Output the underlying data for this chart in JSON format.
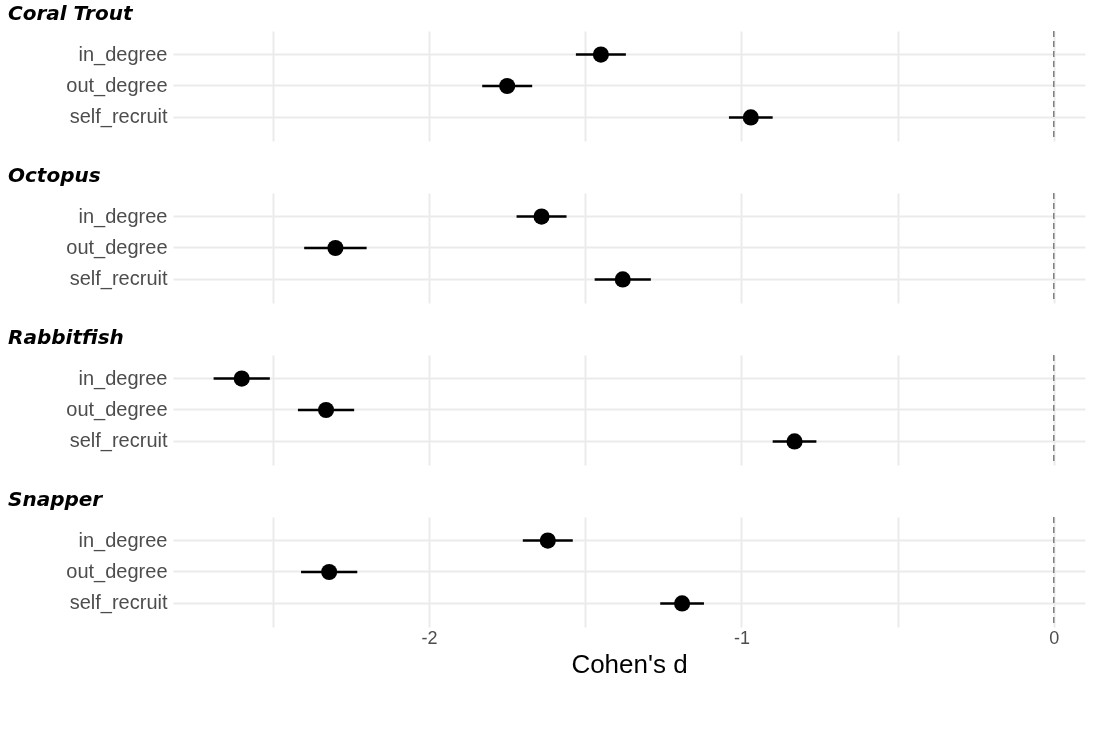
{
  "chart_data": [
    {
      "type": "scatter",
      "title": "Coral Trout",
      "orientation": "horizontal",
      "categories": [
        "in_degree",
        "out_degree",
        "self_recruit"
      ],
      "values": [
        -1.45,
        -1.75,
        -0.97
      ],
      "errors": [
        0.08,
        0.08,
        0.07
      ],
      "color": "#000000",
      "marker": "circle",
      "xlim": [
        -2.82,
        0.1
      ],
      "xticks": [
        {
          "value": -2.5,
          "label": null
        },
        -2,
        {
          "value": -1.5,
          "label": null
        },
        -1,
        {
          "value": -0.5,
          "label": null
        },
        0
      ],
      "grid": true,
      "tick_labels": "y",
      "ref_lines": [
        {
          "axis": "x",
          "value": 0,
          "color": "#808080",
          "line_style": "dashed"
        }
      ]
    },
    {
      "type": "scatter",
      "title": "Octopus",
      "orientation": "horizontal",
      "categories": [
        "in_degree",
        "out_degree",
        "self_recruit"
      ],
      "values": [
        -1.64,
        -2.3,
        -1.38
      ],
      "errors": [
        0.08,
        0.1,
        0.09
      ],
      "color": "#000000",
      "marker": "circle",
      "xlim": [
        -2.82,
        0.1
      ],
      "xticks": [
        {
          "value": -2.5,
          "label": null
        },
        -2,
        {
          "value": -1.5,
          "label": null
        },
        -1,
        {
          "value": -0.5,
          "label": null
        },
        0
      ],
      "grid": true,
      "tick_labels": "y",
      "ref_lines": [
        {
          "axis": "x",
          "value": 0,
          "color": "#808080",
          "line_style": "dashed"
        }
      ]
    },
    {
      "type": "scatter",
      "title": "Rabbitfish",
      "orientation": "horizontal",
      "categories": [
        "in_degree",
        "out_degree",
        "self_recruit"
      ],
      "values": [
        -2.6,
        -2.33,
        -0.83
      ],
      "errors": [
        0.09,
        0.09,
        0.07
      ],
      "color": "#000000",
      "marker": "circle",
      "xlim": [
        -2.82,
        0.1
      ],
      "xticks": [
        {
          "value": -2.5,
          "label": null
        },
        -2,
        {
          "value": -1.5,
          "label": null
        },
        -1,
        {
          "value": -0.5,
          "label": null
        },
        0
      ],
      "grid": true,
      "tick_labels": "y",
      "ref_lines": [
        {
          "axis": "x",
          "value": 0,
          "color": "#808080",
          "line_style": "dashed"
        }
      ]
    },
    {
      "type": "scatter",
      "title": "Snapper",
      "orientation": "horizontal",
      "xlabel": "Cohen's d",
      "categories": [
        "in_degree",
        "out_degree",
        "self_recruit"
      ],
      "values": [
        -1.62,
        -2.32,
        -1.19
      ],
      "errors": [
        0.08,
        0.09,
        0.07
      ],
      "color": "#000000",
      "marker": "circle",
      "xlim": [
        -2.82,
        0.1
      ],
      "xticks": [
        {
          "value": -2.5,
          "label": null
        },
        -2,
        {
          "value": -1.5,
          "label": null
        },
        -1,
        {
          "value": -0.5,
          "label": null
        },
        0
      ],
      "grid": true,
      "ref_lines": [
        {
          "axis": "x",
          "value": 0,
          "color": "#808080",
          "line_style": "dashed"
        }
      ]
    }
  ]
}
